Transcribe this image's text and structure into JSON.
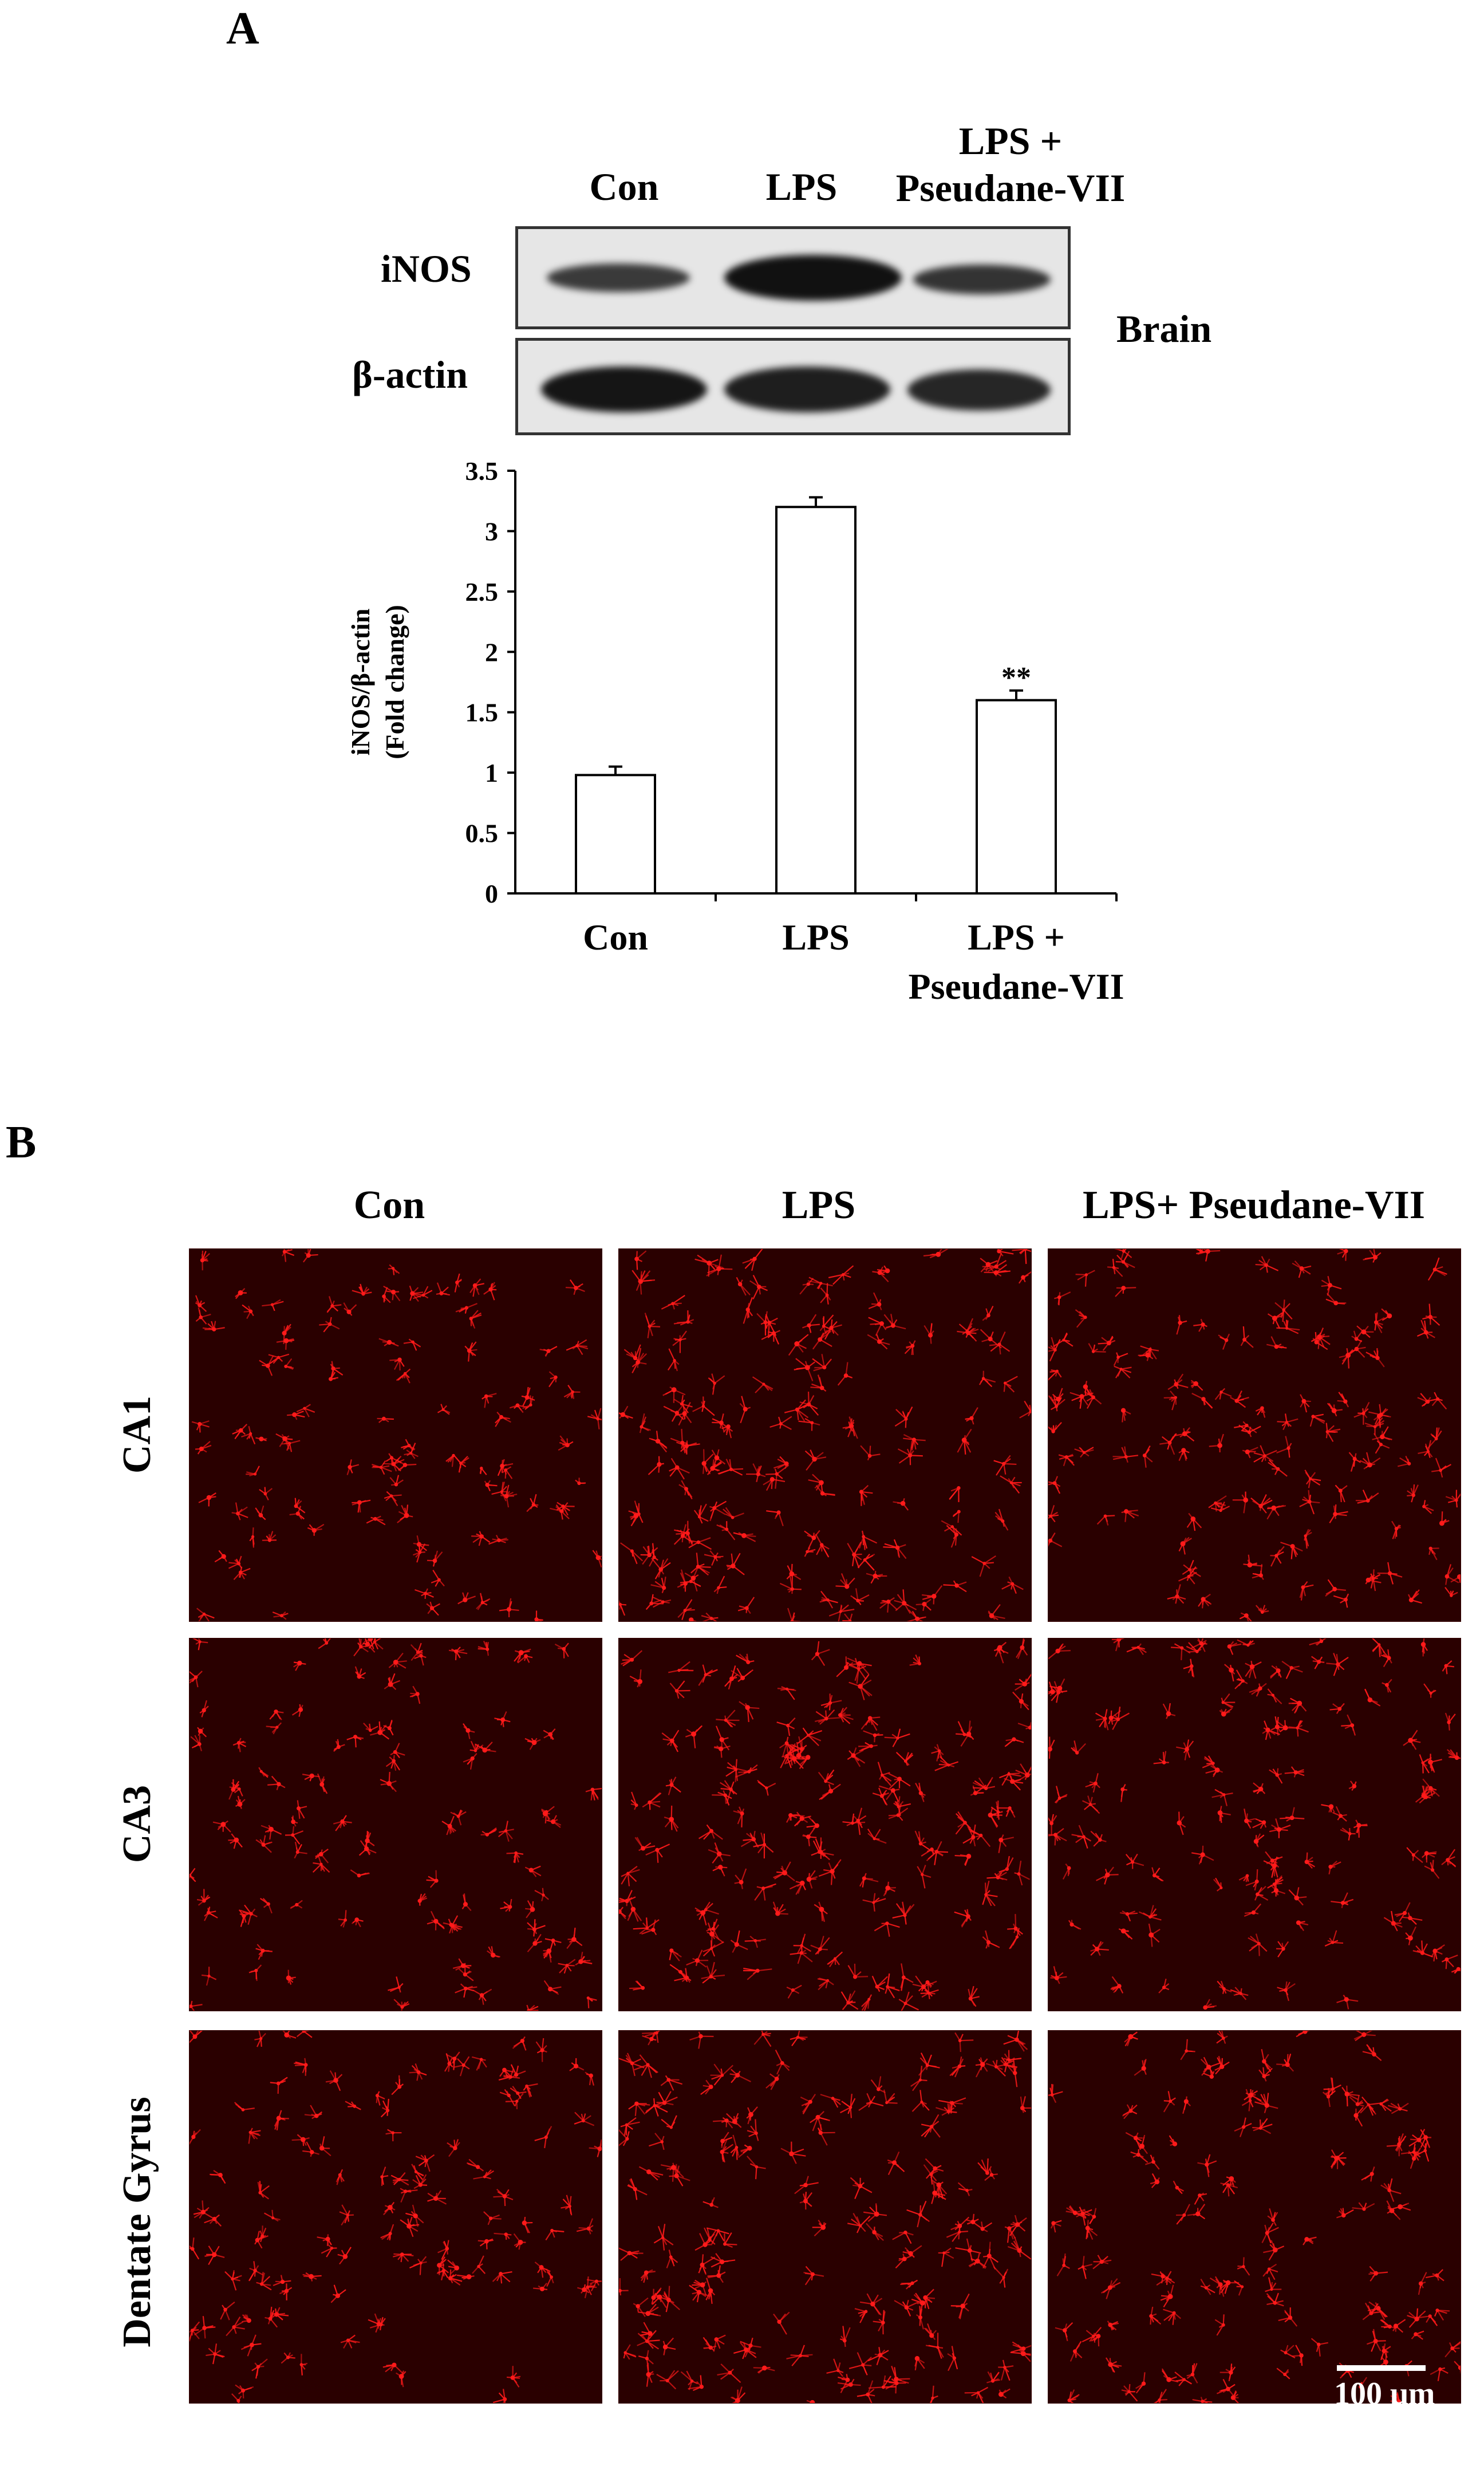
{
  "panel_a": {
    "letter": "A",
    "blot": {
      "lanes": [
        "Con",
        "LPS",
        "LPS +\nPseudane-VII"
      ],
      "lane_1": "Con",
      "lane_2": "LPS",
      "lane_3_line1": "LPS +",
      "lane_3_line2": "Pseudane-VII",
      "rows": [
        "iNOS",
        "β-actin"
      ],
      "row_1": "iNOS",
      "row_2": "β-actin",
      "tissue": "Brain"
    }
  },
  "chart_data": {
    "type": "bar",
    "categories": [
      "Con",
      "LPS",
      "LPS + Pseudane-VII"
    ],
    "category_lines": [
      [
        "Con"
      ],
      [
        "LPS"
      ],
      [
        "LPS +",
        "Pseudane-VII"
      ]
    ],
    "values": [
      0.98,
      3.2,
      1.6
    ],
    "errors": [
      0.07,
      0.08,
      0.08
    ],
    "annotations": [
      {
        "category": "LPS + Pseudane-VII",
        "text": "**"
      }
    ],
    "ylabel_line1": "iNOS/β-actin",
    "ylabel_line2": "(Fold change)",
    "ylim": [
      0,
      3.5
    ],
    "yticks": [
      0,
      0.5,
      1,
      1.5,
      2,
      2.5,
      3,
      3.5
    ],
    "ytick_labels": [
      "0",
      "0.5",
      "1",
      "1.5",
      "2",
      "2.5",
      "3",
      "3.5"
    ],
    "grid": false,
    "bar_fill": "#ffffff",
    "bar_stroke": "#000000"
  },
  "panel_b": {
    "letter": "B",
    "columns": [
      "Con",
      "LPS",
      "LPS+ Pseudane-VII"
    ],
    "col_1": "Con",
    "col_2": "LPS",
    "col_3": "LPS+ Pseudane-VII",
    "rows": [
      "CA1",
      "CA3",
      "Dentate Gyrus"
    ],
    "row_1": "CA1",
    "row_2": "CA3",
    "row_3": "Dentate Gyrus",
    "scale_bar": "100 μm",
    "stain_color": "#ff1a1a",
    "background_color": "#2a0000"
  }
}
